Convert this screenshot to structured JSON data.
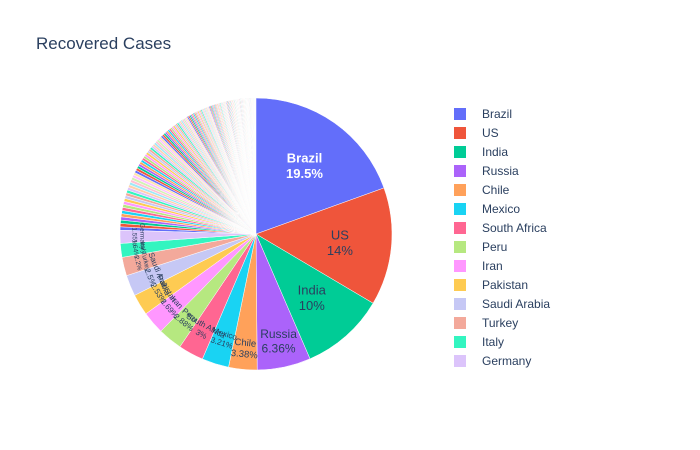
{
  "chart_data": {
    "type": "pie",
    "title": "Recovered Cases",
    "slices": [
      {
        "label": "Brazil",
        "percent": 19.5,
        "color": "#636efa",
        "text": "19.5%"
      },
      {
        "label": "US",
        "percent": 14.0,
        "color": "#EF553B",
        "text": "14%"
      },
      {
        "label": "India",
        "percent": 10.0,
        "color": "#00cc96",
        "text": "10%"
      },
      {
        "label": "Russia",
        "percent": 6.36,
        "color": "#ab63fa",
        "text": "6.36%"
      },
      {
        "label": "Chile",
        "percent": 3.38,
        "color": "#FFA15A",
        "text": "3.38%"
      },
      {
        "label": "Mexico",
        "percent": 3.21,
        "color": "#19d3f3",
        "text": "3.21%"
      },
      {
        "label": "South Africa",
        "percent": 3.0,
        "color": "#FF6692",
        "text": "3%"
      },
      {
        "label": "Peru",
        "percent": 2.88,
        "color": "#B6E880",
        "text": "2.88%"
      },
      {
        "label": "Iran",
        "percent": 2.69,
        "color": "#FF97FF",
        "text": "2.69%"
      },
      {
        "label": "Pakistan",
        "percent": 2.53,
        "color": "#FECB52",
        "text": "2.53%"
      },
      {
        "label": "Saudi Arabia",
        "percent": 2.5,
        "color": "#c6c8f5",
        "text": "2.5%"
      },
      {
        "label": "Turkey",
        "percent": 2.2,
        "color": "#f3a99b",
        "text": "2.2%"
      },
      {
        "label": "Italy",
        "percent": 1.64,
        "color": "#33f5c0",
        "text": "1.64%"
      },
      {
        "label": "Germany",
        "percent": 1.55,
        "color": "#dcc4fb",
        "text": "1.55%"
      }
    ],
    "other_colors": [
      "#636efa",
      "#EF553B",
      "#00cc96",
      "#ab63fa",
      "#FFA15A",
      "#19d3f3",
      "#FF6692",
      "#B6E880",
      "#FF97FF",
      "#FECB52",
      "#c6c8f5",
      "#f3a99b",
      "#33f5c0",
      "#dcc4fb",
      "#ffd0ad",
      "#9ee9f7",
      "#ffc2d3",
      "#d3f1b3",
      "#ffc1ff",
      "#ffe5a8"
    ],
    "legend_position": "right"
  }
}
